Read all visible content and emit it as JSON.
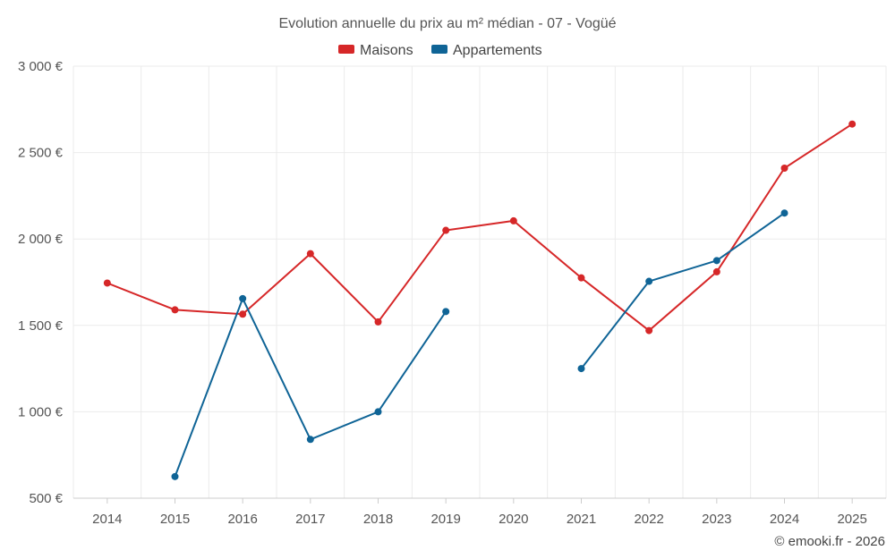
{
  "chart_data": {
    "type": "line",
    "title": "Evolution annuelle du prix au m² médian - 07 - Vogüé",
    "xlabel": "",
    "ylabel": "",
    "categories": [
      "2014",
      "2015",
      "2016",
      "2017",
      "2018",
      "2019",
      "2020",
      "2021",
      "2022",
      "2023",
      "2024",
      "2025"
    ],
    "ylim": [
      500,
      3000
    ],
    "yticks": [
      500,
      1000,
      1500,
      2000,
      2500,
      3000
    ],
    "ytick_labels": [
      "500 €",
      "1 000 €",
      "1 500 €",
      "2 000 €",
      "2 500 €",
      "3 000 €"
    ],
    "grid": true,
    "legend_position": "top-center",
    "series": [
      {
        "name": "Maisons",
        "color": "#d62728",
        "values": [
          1745,
          1590,
          1565,
          1915,
          1520,
          2050,
          2105,
          1775,
          1470,
          1810,
          2410,
          2665
        ]
      },
      {
        "name": "Appartements",
        "color": "#0f6496",
        "values": [
          null,
          625,
          1655,
          840,
          1000,
          1580,
          null,
          1250,
          1755,
          1875,
          2150,
          null
        ]
      }
    ]
  },
  "credit": "© emooki.fr - 2026"
}
